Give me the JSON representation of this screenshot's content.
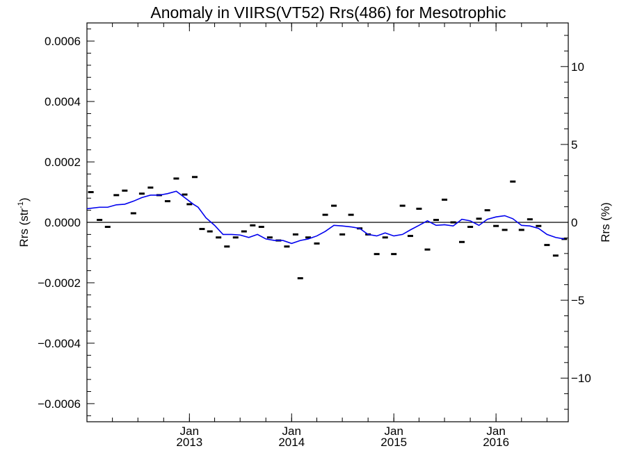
{
  "chart_data": {
    "type": "line",
    "title": "Anomaly in VIIRS(VT52) Rrs(486) for Mesotrophic",
    "ylabel": "Rrs (str",
    "ylabel_sup": "-1",
    "ylabel_close": ")",
    "y2label": "Rrs (%)",
    "xlim": [
      "2012-01-01",
      "2016-09-15"
    ],
    "ylim": [
      -0.00066,
      0.00066
    ],
    "y2lim": [
      -12.8,
      12.8
    ],
    "x_ticks": [
      {
        "date": "2013-01-01",
        "line1": "Jan",
        "line2": "2013"
      },
      {
        "date": "2014-01-01",
        "line1": "Jan",
        "line2": "2014"
      },
      {
        "date": "2015-01-01",
        "line1": "Jan",
        "line2": "2015"
      },
      {
        "date": "2016-01-01",
        "line1": "Jan",
        "line2": "2016"
      }
    ],
    "y_ticks": [
      {
        "value": 0.0006,
        "label": "0.0006"
      },
      {
        "value": 0.0004,
        "label": "0.0004"
      },
      {
        "value": 0.0002,
        "label": "0.0002"
      },
      {
        "value": 0.0,
        "label": "0.0000"
      },
      {
        "value": -0.0002,
        "label": "−0.0002"
      },
      {
        "value": -0.0004,
        "label": "−0.0004"
      },
      {
        "value": -0.0006,
        "label": "−0.0006"
      }
    ],
    "y2_ticks": [
      {
        "value": 10,
        "label": "10"
      },
      {
        "value": 5,
        "label": "5"
      },
      {
        "value": 0,
        "label": "0"
      },
      {
        "value": -5,
        "label": "−5"
      },
      {
        "value": -10,
        "label": "−10"
      }
    ],
    "zero_line": true,
    "grid": false,
    "colors": {
      "monthly_marker": "#000000",
      "smoothed_line": "#0000ee",
      "zero_line": "#000000"
    },
    "series": [
      {
        "marker": "dash",
        "points": [
          {
            "x": "2012-01-15",
            "y": 0.0001
          },
          {
            "x": "2012-02-15",
            "y": 8e-06
          },
          {
            "x": "2012-03-15",
            "y": -1.5e-05
          },
          {
            "x": "2012-04-15",
            "y": 9e-05
          },
          {
            "x": "2012-05-15",
            "y": 0.000105
          },
          {
            "x": "2012-06-15",
            "y": 3e-05
          },
          {
            "x": "2012-07-15",
            "y": 9.5e-05
          },
          {
            "x": "2012-08-15",
            "y": 0.000115
          },
          {
            "x": "2012-09-15",
            "y": 9e-05
          },
          {
            "x": "2012-10-15",
            "y": 7e-05
          },
          {
            "x": "2012-11-15",
            "y": 0.000145
          },
          {
            "x": "2012-12-15",
            "y": 9.2e-05
          },
          {
            "x": "2013-01-01",
            "y": 6e-05
          },
          {
            "x": "2013-01-20",
            "y": 0.00015
          },
          {
            "x": "2013-02-15",
            "y": -2.2e-05
          },
          {
            "x": "2013-03-15",
            "y": -3e-05
          },
          {
            "x": "2013-04-15",
            "y": -5e-05
          },
          {
            "x": "2013-05-15",
            "y": -8e-05
          },
          {
            "x": "2013-06-15",
            "y": -5e-05
          },
          {
            "x": "2013-07-15",
            "y": -3e-05
          },
          {
            "x": "2013-08-15",
            "y": -1e-05
          },
          {
            "x": "2013-09-15",
            "y": -1.5e-05
          },
          {
            "x": "2013-10-15",
            "y": -5e-05
          },
          {
            "x": "2013-11-15",
            "y": -6e-05
          },
          {
            "x": "2013-12-15",
            "y": -8e-05
          },
          {
            "x": "2014-01-15",
            "y": -4e-05
          },
          {
            "x": "2014-02-01",
            "y": -0.000185
          },
          {
            "x": "2014-03-01",
            "y": -5e-05
          },
          {
            "x": "2014-04-01",
            "y": -7e-05
          },
          {
            "x": "2014-05-01",
            "y": 2.5e-05
          },
          {
            "x": "2014-06-01",
            "y": 5.5e-05
          },
          {
            "x": "2014-07-01",
            "y": -4e-05
          },
          {
            "x": "2014-08-01",
            "y": 2.5e-05
          },
          {
            "x": "2014-09-01",
            "y": -2e-05
          },
          {
            "x": "2014-10-01",
            "y": -4e-05
          },
          {
            "x": "2014-11-01",
            "y": -0.000105
          },
          {
            "x": "2014-12-01",
            "y": -5e-05
          },
          {
            "x": "2015-01-01",
            "y": -0.000105
          },
          {
            "x": "2015-02-01",
            "y": 5.5e-05
          },
          {
            "x": "2015-03-01",
            "y": -4.5e-05
          },
          {
            "x": "2015-04-01",
            "y": 4.5e-05
          },
          {
            "x": "2015-05-01",
            "y": -9e-05
          },
          {
            "x": "2015-06-01",
            "y": 8e-06
          },
          {
            "x": "2015-07-01",
            "y": 7.5e-05
          },
          {
            "x": "2015-08-01",
            "y": 0.0
          },
          {
            "x": "2015-09-01",
            "y": -6.5e-05
          },
          {
            "x": "2015-10-01",
            "y": -1.5e-05
          },
          {
            "x": "2015-11-01",
            "y": 1.2e-05
          },
          {
            "x": "2015-12-01",
            "y": 4e-05
          },
          {
            "x": "2016-01-01",
            "y": -1.2e-05
          },
          {
            "x": "2016-02-01",
            "y": -2.5e-05
          },
          {
            "x": "2016-03-01",
            "y": 0.000135
          },
          {
            "x": "2016-04-01",
            "y": -2.5e-05
          },
          {
            "x": "2016-05-01",
            "y": 1e-05
          },
          {
            "x": "2016-06-01",
            "y": -1.2e-05
          },
          {
            "x": "2016-07-01",
            "y": -7.5e-05
          },
          {
            "x": "2016-08-01",
            "y": -0.00011
          },
          {
            "x": "2016-09-01",
            "y": -5.5e-05
          }
        ]
      },
      {
        "marker": "line",
        "points": [
          {
            "x": "2012-01-01",
            "y": 4.5e-05
          },
          {
            "x": "2012-02-15",
            "y": 5e-05
          },
          {
            "x": "2012-03-15",
            "y": 5e-05
          },
          {
            "x": "2012-04-15",
            "y": 5.8e-05
          },
          {
            "x": "2012-05-15",
            "y": 6e-05
          },
          {
            "x": "2012-06-15",
            "y": 7e-05
          },
          {
            "x": "2012-07-15",
            "y": 8.2e-05
          },
          {
            "x": "2012-08-15",
            "y": 9e-05
          },
          {
            "x": "2012-09-15",
            "y": 9e-05
          },
          {
            "x": "2012-10-15",
            "y": 9.5e-05
          },
          {
            "x": "2012-11-15",
            "y": 0.000103
          },
          {
            "x": "2012-12-15",
            "y": 8.2e-05
          },
          {
            "x": "2013-01-15",
            "y": 6e-05
          },
          {
            "x": "2013-02-01",
            "y": 5e-05
          },
          {
            "x": "2013-03-01",
            "y": 1.5e-05
          },
          {
            "x": "2013-04-01",
            "y": -1e-05
          },
          {
            "x": "2013-05-01",
            "y": -4e-05
          },
          {
            "x": "2013-06-01",
            "y": -4e-05
          },
          {
            "x": "2013-07-01",
            "y": -4.2e-05
          },
          {
            "x": "2013-08-01",
            "y": -5e-05
          },
          {
            "x": "2013-09-01",
            "y": -4e-05
          },
          {
            "x": "2013-10-01",
            "y": -5.5e-05
          },
          {
            "x": "2013-11-01",
            "y": -6e-05
          },
          {
            "x": "2013-12-01",
            "y": -6e-05
          },
          {
            "x": "2014-01-01",
            "y": -7e-05
          },
          {
            "x": "2014-02-01",
            "y": -6e-05
          },
          {
            "x": "2014-03-01",
            "y": -5.5e-05
          },
          {
            "x": "2014-04-01",
            "y": -4.5e-05
          },
          {
            "x": "2014-05-01",
            "y": -3e-05
          },
          {
            "x": "2014-06-01",
            "y": -1e-05
          },
          {
            "x": "2014-07-01",
            "y": -1.2e-05
          },
          {
            "x": "2014-08-01",
            "y": -1.5e-05
          },
          {
            "x": "2014-09-01",
            "y": -2e-05
          },
          {
            "x": "2014-10-01",
            "y": -4e-05
          },
          {
            "x": "2014-11-01",
            "y": -4.5e-05
          },
          {
            "x": "2014-12-01",
            "y": -3.5e-05
          },
          {
            "x": "2015-01-01",
            "y": -4.5e-05
          },
          {
            "x": "2015-02-01",
            "y": -4e-05
          },
          {
            "x": "2015-03-01",
            "y": -2.5e-05
          },
          {
            "x": "2015-04-01",
            "y": -1e-05
          },
          {
            "x": "2015-05-01",
            "y": 5e-06
          },
          {
            "x": "2015-06-01",
            "y": -1e-05
          },
          {
            "x": "2015-07-01",
            "y": -8e-06
          },
          {
            "x": "2015-08-01",
            "y": -1.2e-05
          },
          {
            "x": "2015-09-01",
            "y": 1e-05
          },
          {
            "x": "2015-10-01",
            "y": 5e-06
          },
          {
            "x": "2015-11-01",
            "y": -1e-05
          },
          {
            "x": "2015-12-01",
            "y": 1e-05
          },
          {
            "x": "2016-01-01",
            "y": 1.8e-05
          },
          {
            "x": "2016-02-01",
            "y": 2.2e-05
          },
          {
            "x": "2016-03-01",
            "y": 1.2e-05
          },
          {
            "x": "2016-04-01",
            "y": -1e-05
          },
          {
            "x": "2016-05-01",
            "y": -1.2e-05
          },
          {
            "x": "2016-06-01",
            "y": -2e-05
          },
          {
            "x": "2016-07-01",
            "y": -4e-05
          },
          {
            "x": "2016-08-01",
            "y": -5e-05
          },
          {
            "x": "2016-09-01",
            "y": -5.5e-05
          }
        ]
      }
    ]
  }
}
